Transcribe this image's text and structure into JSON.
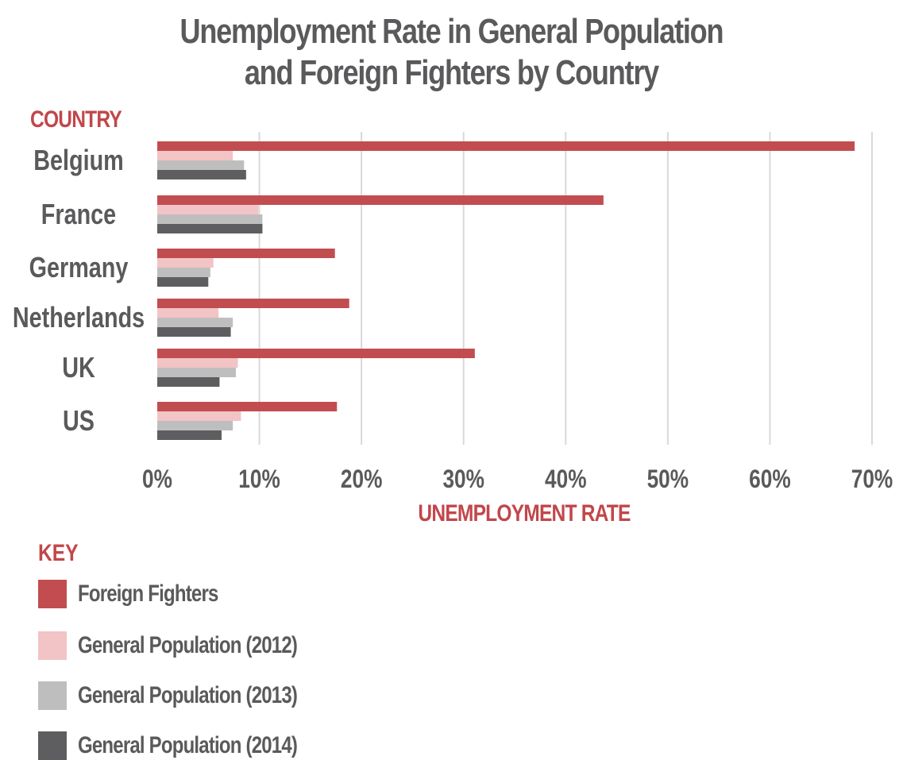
{
  "title_line1": "Unemployment Rate in General Population",
  "title_line2": "and Foreign Fighters by Country",
  "y_axis_heading": "COUNTRY",
  "x_axis_heading": "UNEMPLOYMENT RATE",
  "key_heading": "KEY",
  "colors": {
    "accent": "#c1474b",
    "text": "#5a5a5c",
    "gridline": "#d9d9d9",
    "foreign_fighters": "#c24d50",
    "gp_2012": "#f2c4c5",
    "gp_2013": "#bfbebf",
    "gp_2014": "#5e5d5f"
  },
  "chart_data": {
    "type": "bar",
    "orientation": "horizontal",
    "title": "Unemployment Rate in General Population and Foreign Fighters by Country",
    "xlabel": "UNEMPLOYMENT RATE",
    "ylabel": "COUNTRY",
    "xlim": [
      0,
      70
    ],
    "x_ticks": [
      "0%",
      "10%",
      "20%",
      "30%",
      "40%",
      "50%",
      "60%",
      "70%"
    ],
    "grid": true,
    "legend_position": "bottom-left",
    "categories": [
      "Belgium",
      "France",
      "Germany",
      "Netherlands",
      "UK",
      "US"
    ],
    "series": [
      {
        "name": "Foreign Fighters",
        "color": "#c24d50",
        "values": [
          68.3,
          43.7,
          17.4,
          18.8,
          31.1,
          17.6
        ]
      },
      {
        "name": "General Population (2012)",
        "color": "#f2c4c5",
        "values": [
          7.4,
          9.9,
          5.5,
          6.0,
          7.9,
          8.2
        ]
      },
      {
        "name": "General Population (2013)",
        "color": "#bfbebf",
        "values": [
          8.5,
          10.3,
          5.2,
          7.4,
          7.7,
          7.4
        ]
      },
      {
        "name": "General Population (2014)",
        "color": "#5e5d5f",
        "values": [
          8.7,
          10.3,
          5.0,
          7.2,
          6.1,
          6.3
        ]
      }
    ]
  }
}
